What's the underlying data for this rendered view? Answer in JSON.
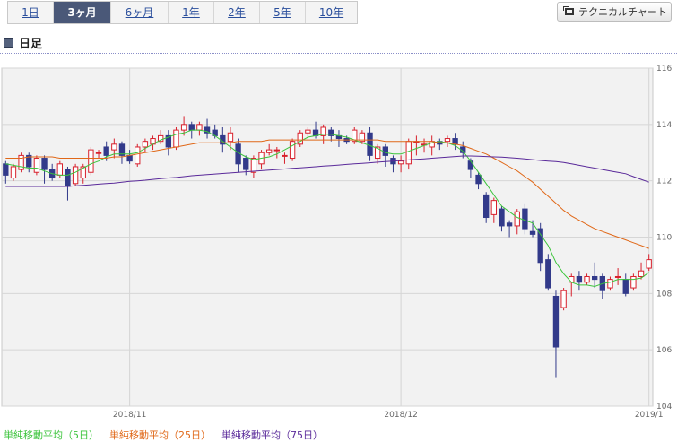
{
  "tabs": [
    {
      "label": "1日",
      "active": false
    },
    {
      "label": "3ヶ月",
      "active": true
    },
    {
      "label": "6ヶ月",
      "active": false
    },
    {
      "label": "1年",
      "active": false
    },
    {
      "label": "2年",
      "active": false
    },
    {
      "label": "5年",
      "active": false
    },
    {
      "label": "10年",
      "active": false
    }
  ],
  "technical_button": "テクニカルチャート",
  "section_title": "日足",
  "colors": {
    "up": "#d8202c",
    "down": "#323a8a",
    "ma5": "#3cc43c",
    "ma25": "#e06818",
    "ma75": "#5a2a9a"
  },
  "chart_data": {
    "type": "candlestick",
    "ylim": [
      104,
      116
    ],
    "yticks": [
      "104",
      "106",
      "108",
      "110",
      "112",
      "114",
      "116"
    ],
    "xticks": [
      {
        "label": "2018/11",
        "index": 16
      },
      {
        "label": "2018/12",
        "index": 51
      },
      {
        "label": "2019/1",
        "index": 83
      }
    ],
    "grid": true,
    "legend_position": "bottom-left",
    "candles": [
      [
        112.6,
        112.2,
        112.7,
        111.9
      ],
      [
        112.1,
        112.5,
        112.6,
        112.0
      ],
      [
        112.4,
        112.9,
        113.0,
        112.3
      ],
      [
        112.9,
        112.5,
        113.0,
        112.3
      ],
      [
        112.3,
        112.8,
        112.9,
        112.2
      ],
      [
        112.8,
        112.4,
        112.9,
        111.9
      ],
      [
        112.4,
        112.1,
        112.6,
        112.0
      ],
      [
        112.2,
        112.6,
        112.7,
        112.1
      ],
      [
        112.4,
        111.8,
        112.5,
        111.3
      ],
      [
        111.9,
        112.5,
        112.6,
        111.8
      ],
      [
        112.1,
        112.5,
        112.6,
        111.9
      ],
      [
        112.3,
        113.1,
        113.2,
        112.2
      ],
      [
        113.0,
        113.0,
        113.1,
        112.8
      ],
      [
        113.2,
        112.9,
        113.4,
        112.7
      ],
      [
        113.1,
        113.3,
        113.5,
        112.8
      ],
      [
        113.3,
        112.9,
        113.4,
        112.6
      ],
      [
        112.9,
        112.7,
        113.1,
        112.6
      ],
      [
        112.6,
        113.2,
        113.3,
        112.5
      ],
      [
        113.2,
        113.4,
        113.5,
        113.0
      ],
      [
        113.3,
        113.5,
        113.6,
        113.1
      ],
      [
        113.4,
        113.6,
        113.8,
        113.3
      ],
      [
        113.6,
        113.2,
        113.8,
        112.9
      ],
      [
        113.2,
        113.8,
        113.9,
        113.1
      ],
      [
        113.8,
        114.0,
        114.3,
        113.6
      ],
      [
        114.0,
        113.8,
        114.1,
        113.5
      ],
      [
        113.8,
        114.0,
        114.1,
        113.6
      ],
      [
        113.9,
        113.7,
        114.2,
        113.5
      ],
      [
        113.8,
        113.6,
        114.0,
        113.5
      ],
      [
        113.6,
        113.3,
        113.9,
        113.0
      ],
      [
        113.4,
        113.7,
        113.9,
        113.1
      ],
      [
        113.3,
        112.6,
        113.5,
        112.3
      ],
      [
        112.8,
        112.4,
        112.9,
        112.2
      ],
      [
        112.3,
        112.8,
        112.9,
        112.1
      ],
      [
        112.6,
        113.0,
        113.1,
        112.4
      ],
      [
        113.0,
        113.1,
        113.3,
        112.9
      ],
      [
        113.1,
        113.1,
        113.2,
        112.8
      ],
      [
        112.9,
        112.9,
        113.0,
        112.6
      ],
      [
        112.8,
        113.4,
        113.5,
        112.7
      ],
      [
        113.3,
        113.7,
        113.8,
        113.2
      ],
      [
        113.7,
        113.8,
        113.9,
        113.5
      ],
      [
        113.8,
        113.6,
        114.1,
        113.5
      ],
      [
        113.6,
        113.9,
        114.0,
        113.3
      ],
      [
        113.8,
        113.6,
        113.9,
        113.4
      ],
      [
        113.6,
        113.5,
        113.8,
        113.2
      ],
      [
        113.5,
        113.4,
        113.6,
        113.3
      ],
      [
        113.4,
        113.8,
        113.9,
        113.3
      ],
      [
        113.4,
        113.7,
        113.8,
        113.3
      ],
      [
        113.7,
        112.9,
        113.9,
        112.7
      ],
      [
        112.8,
        113.2,
        113.3,
        112.6
      ],
      [
        113.2,
        112.9,
        113.3,
        112.5
      ],
      [
        112.8,
        112.6,
        112.9,
        112.3
      ],
      [
        112.6,
        112.7,
        112.9,
        112.3
      ],
      [
        112.6,
        113.4,
        113.5,
        112.4
      ],
      [
        113.4,
        113.4,
        113.6,
        112.9
      ],
      [
        113.3,
        113.3,
        113.5,
        113.0
      ],
      [
        113.2,
        113.4,
        113.6,
        112.9
      ],
      [
        113.4,
        113.3,
        113.5,
        113.1
      ],
      [
        113.4,
        113.5,
        113.6,
        113.2
      ],
      [
        113.5,
        113.3,
        113.7,
        113.1
      ],
      [
        113.2,
        113.0,
        113.4,
        112.8
      ],
      [
        112.7,
        112.4,
        112.8,
        112.1
      ],
      [
        112.2,
        111.9,
        112.3,
        111.7
      ],
      [
        111.5,
        110.7,
        111.6,
        110.5
      ],
      [
        110.8,
        111.3,
        111.4,
        110.5
      ],
      [
        111.0,
        110.4,
        111.1,
        110.2
      ],
      [
        110.5,
        110.4,
        110.6,
        110.0
      ],
      [
        110.4,
        110.9,
        111.0,
        110.1
      ],
      [
        111.0,
        110.3,
        111.2,
        110.1
      ],
      [
        110.2,
        110.1,
        110.6,
        110.0
      ],
      [
        110.3,
        109.1,
        110.5,
        108.8
      ],
      [
        109.2,
        108.2,
        109.4,
        108.1
      ],
      [
        107.9,
        106.1,
        108.1,
        105.0
      ],
      [
        107.5,
        108.1,
        108.2,
        107.4
      ],
      [
        108.4,
        108.6,
        108.7,
        107.9
      ],
      [
        108.6,
        108.4,
        108.8,
        108.1
      ],
      [
        108.4,
        108.6,
        108.7,
        108.3
      ],
      [
        108.6,
        108.5,
        109.1,
        108.2
      ],
      [
        108.6,
        108.1,
        108.7,
        107.8
      ],
      [
        108.2,
        108.5,
        108.6,
        108.1
      ],
      [
        108.6,
        108.6,
        108.9,
        108.3
      ],
      [
        108.5,
        108.0,
        108.7,
        107.9
      ],
      [
        108.2,
        108.6,
        108.7,
        108.1
      ],
      [
        108.6,
        108.8,
        109.1,
        108.5
      ],
      [
        108.9,
        109.2,
        109.4,
        108.8
      ]
    ],
    "series": [
      {
        "name": "単純移動平均（5日）",
        "values": [
          112.6,
          112.55,
          112.5,
          112.45,
          112.45,
          112.35,
          112.25,
          112.2,
          112.2,
          112.3,
          112.45,
          112.6,
          112.7,
          112.85,
          112.95,
          112.95,
          112.95,
          113.0,
          113.15,
          113.3,
          113.45,
          113.55,
          113.65,
          113.7,
          113.8,
          113.8,
          113.75,
          113.6,
          113.4,
          113.2,
          113.0,
          112.85,
          112.75,
          112.8,
          112.85,
          112.95,
          113.1,
          113.25,
          113.4,
          113.55,
          113.6,
          113.65,
          113.65,
          113.6,
          113.55,
          113.45,
          113.35,
          113.25,
          113.15,
          113.0,
          112.95,
          112.95,
          113.05,
          113.15,
          113.25,
          113.35,
          113.4,
          113.35,
          113.25,
          113.05,
          112.7,
          112.3,
          111.9,
          111.5,
          111.1,
          110.9,
          110.7,
          110.6,
          110.5,
          110.1,
          109.7,
          109.1,
          108.7,
          108.4,
          108.3,
          108.3,
          108.25,
          108.35,
          108.4,
          108.5,
          108.5,
          108.5,
          108.55,
          108.75
        ]
      },
      {
        "name": "単純移動平均（25日）",
        "values": [
          112.8,
          112.8,
          112.8,
          112.85,
          112.85,
          112.85,
          112.85,
          112.8,
          112.8,
          112.8,
          112.8,
          112.8,
          112.8,
          112.8,
          112.85,
          112.85,
          112.9,
          112.95,
          113.0,
          113.05,
          113.1,
          113.15,
          113.2,
          113.25,
          113.3,
          113.35,
          113.35,
          113.35,
          113.35,
          113.35,
          113.4,
          113.4,
          113.4,
          113.4,
          113.45,
          113.45,
          113.45,
          113.45,
          113.45,
          113.45,
          113.45,
          113.45,
          113.45,
          113.45,
          113.45,
          113.45,
          113.45,
          113.45,
          113.45,
          113.4,
          113.4,
          113.4,
          113.4,
          113.4,
          113.4,
          113.4,
          113.35,
          113.35,
          113.3,
          113.25,
          113.15,
          113.05,
          112.95,
          112.8,
          112.65,
          112.5,
          112.35,
          112.15,
          111.95,
          111.7,
          111.45,
          111.2,
          110.95,
          110.75,
          110.6,
          110.45,
          110.3,
          110.2,
          110.1,
          110.0,
          109.9,
          109.8,
          109.7,
          109.6
        ]
      },
      {
        "name": "単純移動平均（75日）",
        "values": [
          111.8,
          111.8,
          111.8,
          111.8,
          111.8,
          111.8,
          111.8,
          111.8,
          111.8,
          111.82,
          111.84,
          111.86,
          111.88,
          111.9,
          111.92,
          111.95,
          111.98,
          112.0,
          112.02,
          112.05,
          112.08,
          112.1,
          112.12,
          112.15,
          112.18,
          112.2,
          112.22,
          112.24,
          112.26,
          112.28,
          112.3,
          112.32,
          112.34,
          112.36,
          112.38,
          112.4,
          112.42,
          112.44,
          112.46,
          112.48,
          112.5,
          112.52,
          112.54,
          112.56,
          112.58,
          112.6,
          112.62,
          112.64,
          112.66,
          112.68,
          112.7,
          112.72,
          112.74,
          112.76,
          112.78,
          112.8,
          112.82,
          112.84,
          112.86,
          112.88,
          112.88,
          112.87,
          112.86,
          112.85,
          112.84,
          112.82,
          112.8,
          112.78,
          112.75,
          112.72,
          112.7,
          112.68,
          112.65,
          112.6,
          112.55,
          112.5,
          112.45,
          112.4,
          112.35,
          112.3,
          112.25,
          112.15,
          112.05,
          111.95
        ]
      }
    ]
  }
}
